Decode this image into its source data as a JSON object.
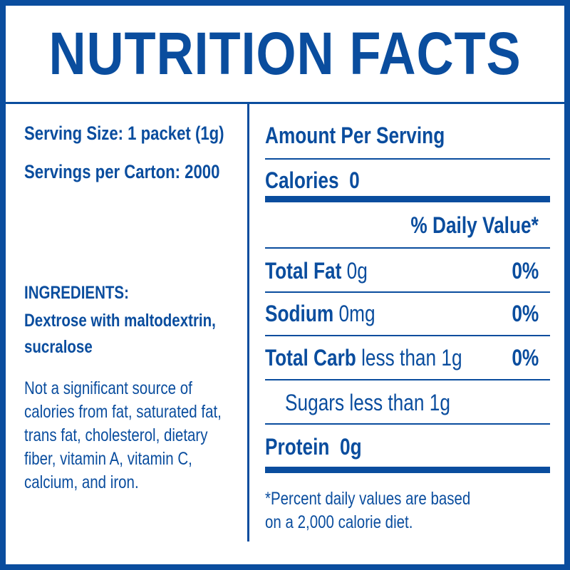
{
  "title": "NUTRITION FACTS",
  "left": {
    "serving_size": "Serving Size: 1 packet (1g)",
    "servings_per_carton": "Servings per Carton: 2000",
    "ingredients_heading": "INGREDIENTS:",
    "ingredients_line1": "Dextrose with maltodextrin,",
    "ingredients_line2": "sucralose",
    "note_lines": [
      "Not a significant source of",
      "calories from fat, saturated fat,",
      "trans fat, cholesterol, dietary",
      "fiber, vitamin A, vitamin C,",
      "calcium, and iron."
    ]
  },
  "right": {
    "amount_per_serving": "Amount Per Serving",
    "calories_label": "Calories",
    "calories_value": "0",
    "daily_value_heading": "% Daily Value*",
    "total_fat_label": "Total Fat",
    "total_fat_amount": "0g",
    "total_fat_dv": "0%",
    "sodium_label": "Sodium",
    "sodium_amount": "0mg",
    "sodium_dv": "0%",
    "total_carb_label": "Total Carb",
    "total_carb_amount": "less than 1g",
    "total_carb_dv": "0%",
    "sugars_line": "Sugars less than 1g",
    "protein_label": "Protein",
    "protein_value": "0g",
    "footnote_line1": "*Percent daily values are based",
    "footnote_line2": "on a 2,000 calorie diet."
  },
  "colors": {
    "ink": "#0a4d9e",
    "background": "#ffffff"
  }
}
